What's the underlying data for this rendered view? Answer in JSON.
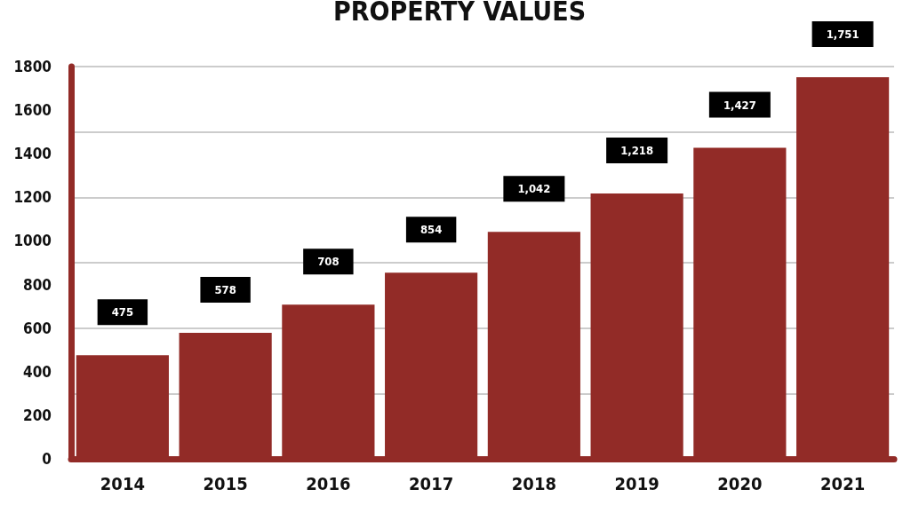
{
  "chart_data": {
    "type": "bar",
    "title": "PROPERTY VALUES",
    "categories": [
      "2014",
      "2015",
      "2016",
      "2017",
      "2018",
      "2019",
      "2020",
      "2021"
    ],
    "values": [
      475,
      578,
      708,
      854,
      1042,
      1218,
      1427,
      1751
    ],
    "value_labels": [
      "475",
      "578",
      "708",
      "854",
      "1,042",
      "1,218",
      "1,427",
      "1,751"
    ],
    "color": "#922b27",
    "ylim": [
      0,
      1800
    ],
    "yticks": [
      0,
      200,
      400,
      600,
      800,
      1000,
      1200,
      1400,
      1600,
      1800
    ],
    "grid": "y"
  }
}
